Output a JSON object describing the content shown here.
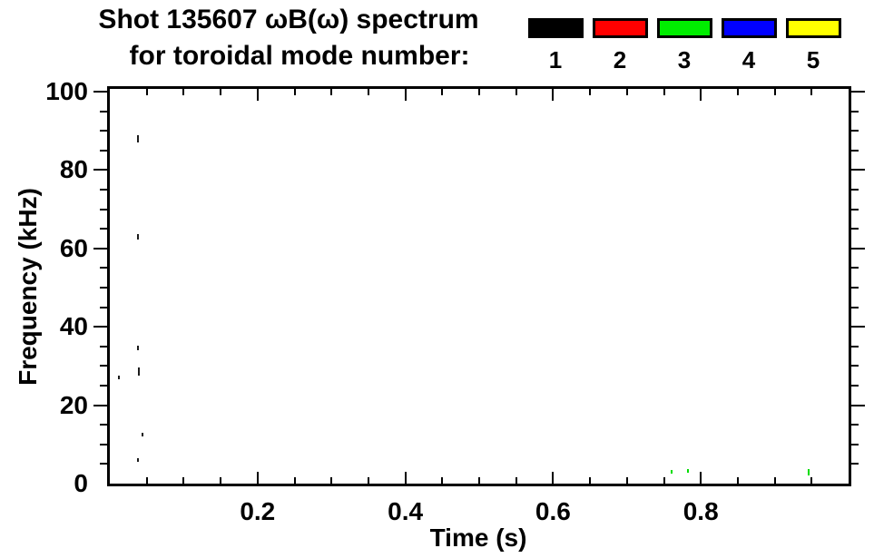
{
  "header": {
    "title_line1": "Shot 135607 ωB(ω) spectrum",
    "title_line2": "for toroidal mode number:"
  },
  "chart_data": {
    "type": "scatter",
    "title": "Shot 135607 ωB(ω) spectrum for toroidal mode number:",
    "xlabel": "Time (s)",
    "ylabel": "Frequency (kHz)",
    "xlim": [
      0,
      1.0
    ],
    "ylim": [
      0,
      100
    ],
    "x_major_ticks": [
      0.2,
      0.4,
      0.6,
      0.8
    ],
    "x_major_tick_labels": [
      "0.2",
      "0.4",
      "0.6",
      "0.8"
    ],
    "x_minor_step": 0.05,
    "y_major_ticks": [
      0,
      20,
      40,
      60,
      80,
      100
    ],
    "y_major_tick_labels": [
      "0",
      "20",
      "40",
      "60",
      "80",
      "100"
    ],
    "y_minor_step": 5,
    "grid": false,
    "legend": {
      "position": "top-right",
      "title": "toroidal mode number",
      "entries": [
        {
          "label": "1",
          "color": "#000000"
        },
        {
          "label": "2",
          "color": "#ff0000"
        },
        {
          "label": "3",
          "color": "#00ee00"
        },
        {
          "label": "4",
          "color": "#0000ff"
        },
        {
          "label": "5",
          "color": "#ffff00"
        }
      ]
    },
    "series": [
      {
        "name": "1",
        "mode_number": 1,
        "color": "#1c1c1c",
        "points": [
          {
            "t": 0.038,
            "f": 88.0,
            "df": 1.8
          },
          {
            "t": 0.038,
            "f": 63.0,
            "df": 1.5
          },
          {
            "t": 0.038,
            "f": 34.5,
            "df": 1.2
          },
          {
            "t": 0.039,
            "f": 28.5,
            "df": 2.0
          },
          {
            "t": 0.012,
            "f": 27.0,
            "df": 1.0
          },
          {
            "t": 0.044,
            "f": 12.5,
            "df": 1.0
          },
          {
            "t": 0.038,
            "f": 6.0,
            "df": 1.0
          }
        ]
      },
      {
        "name": "2",
        "mode_number": 2,
        "color": "#ff0000",
        "points": []
      },
      {
        "name": "3",
        "mode_number": 3,
        "color": "#00dd00",
        "points": [
          {
            "t": 0.761,
            "f": 3.0,
            "df": 1.0
          },
          {
            "t": 0.783,
            "f": 3.2,
            "df": 1.0
          },
          {
            "t": 0.946,
            "f": 3.0,
            "df": 1.6
          }
        ]
      },
      {
        "name": "4",
        "mode_number": 4,
        "color": "#0000ff",
        "points": []
      },
      {
        "name": "5",
        "mode_number": 5,
        "color": "#ffff00",
        "points": []
      }
    ]
  }
}
